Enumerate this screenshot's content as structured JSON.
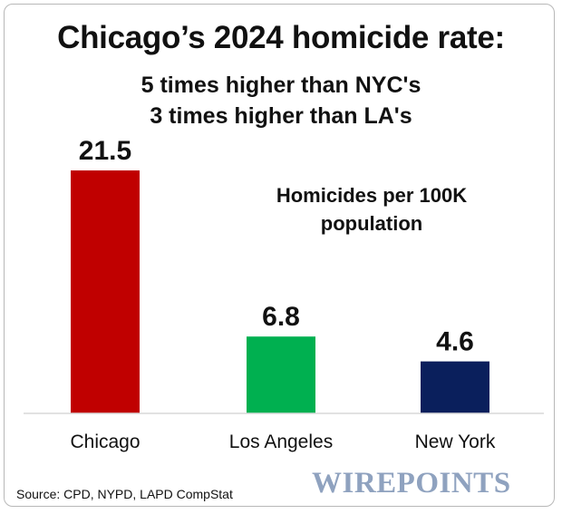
{
  "title": "Chicago’s 2024 homicide rate:",
  "subtitle_lines": [
    "5 times higher than NYC's",
    "3 times higher than LA's"
  ],
  "unit_label_lines": [
    "Homicides per 100K",
    "population"
  ],
  "source": "Source: CPD, NYPD, LAPD CompStat",
  "logo_text": "WIREPOINTS",
  "colors": {
    "chicago": "#c00000",
    "los_angeles": "#00b050",
    "new_york": "#0a1f5c",
    "logo": "#8fa2bf"
  },
  "chart_data": {
    "type": "bar",
    "title": "Chicago’s 2024 homicide rate:",
    "ylabel": "Homicides per 100K population",
    "xlabel": "",
    "categories": [
      "Chicago",
      "Los Angeles",
      "New York"
    ],
    "values": [
      21.5,
      6.8,
      4.6
    ],
    "data_labels": [
      "21.5",
      "6.8",
      "4.6"
    ],
    "bar_colors": [
      "#c00000",
      "#00b050",
      "#0a1f5c"
    ],
    "ylim": [
      0,
      21.5
    ],
    "grid": false,
    "legend": "none"
  }
}
